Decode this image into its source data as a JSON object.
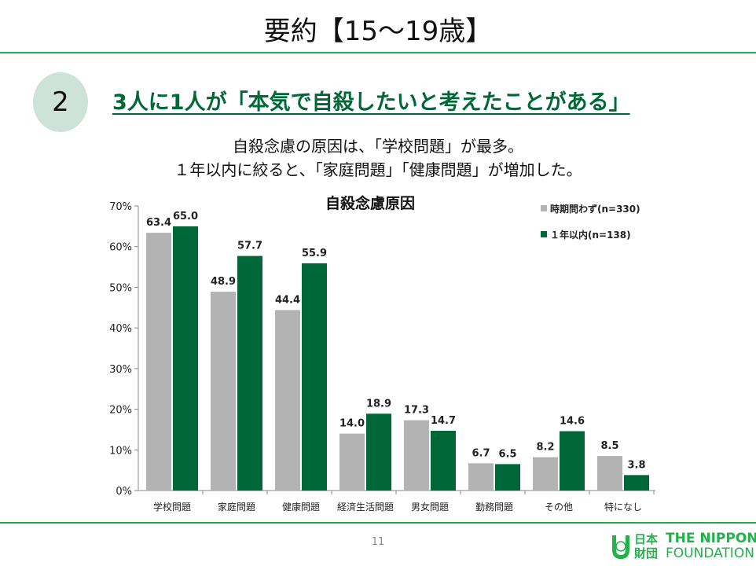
{
  "slide": {
    "title": "要約【15〜19歳】",
    "badge_number": "2",
    "headline": "3人に1人が「本気で自殺したいと考えたことがある」",
    "subtext_line1": "自殺念慮の原因は、「学校問題」が最多。",
    "subtext_line2": "１年以内に絞ると、「家庭問題」「健康問題」が増加した。",
    "page_number": "11",
    "logo": {
      "jp": "日本財団",
      "en_line1": "THE NIPPON",
      "en_line2": "FOUNDATION"
    }
  },
  "colors": {
    "accent": "#22a84a",
    "headline": "#006838",
    "series_gray": "#b3b3b3",
    "series_green": "#006838"
  },
  "chart_data": {
    "type": "bar",
    "title": "自殺念慮原因",
    "categories": [
      "学校問題",
      "家庭問題",
      "健康問題",
      "経済生活問題",
      "男女問題",
      "勤務問題",
      "その他",
      "特になし"
    ],
    "series": [
      {
        "name": "時期問わず(n=330)",
        "color": "#b3b3b3",
        "values": [
          63.4,
          48.9,
          44.4,
          14.0,
          17.3,
          6.7,
          8.2,
          8.5
        ]
      },
      {
        "name": "１年以内(n=138)",
        "color": "#006838",
        "values": [
          65.0,
          57.7,
          55.9,
          18.9,
          14.7,
          6.5,
          14.6,
          3.8
        ]
      }
    ],
    "ylim": [
      0,
      70
    ],
    "yticks": [
      "0%",
      "10%",
      "20%",
      "30%",
      "40%",
      "50%",
      "60%",
      "70%"
    ],
    "legend": "top-right",
    "grid": false
  }
}
